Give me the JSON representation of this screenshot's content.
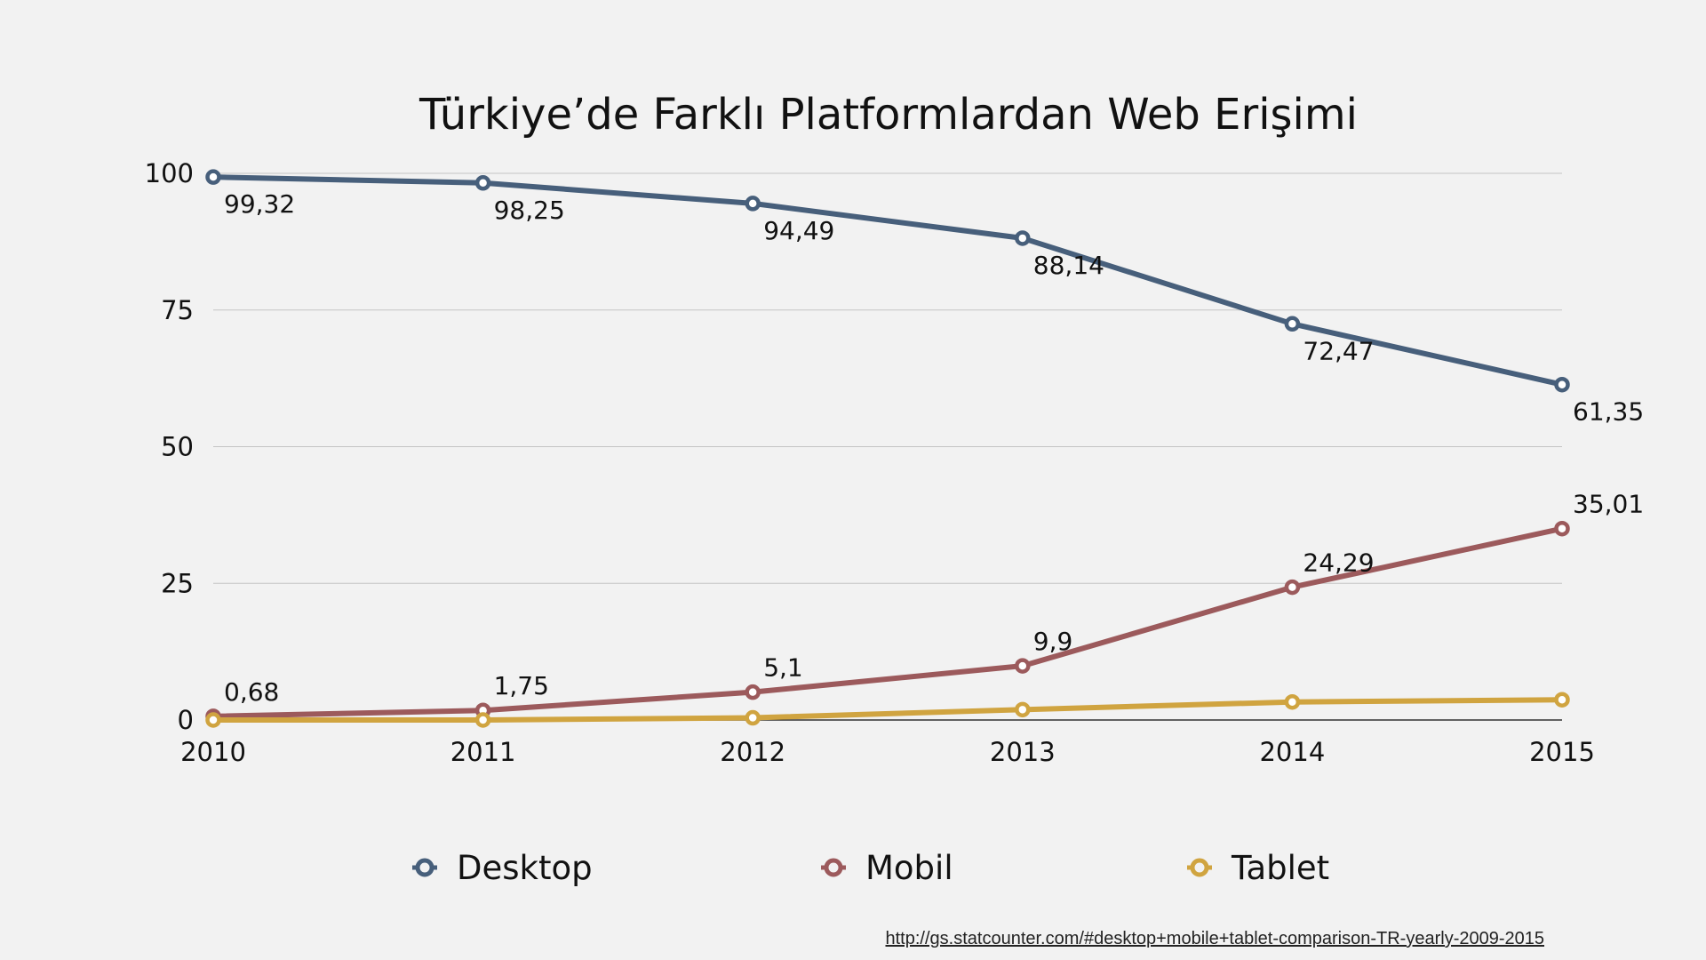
{
  "chart_data": {
    "type": "line",
    "title": "Türkiye’de Farklı Platformlardan Web Erişimi",
    "categories": [
      "2010",
      "2011",
      "2012",
      "2013",
      "2014",
      "2015"
    ],
    "ylim": [
      0,
      100
    ],
    "yticks": [
      0,
      25,
      50,
      75,
      100
    ],
    "grid": true,
    "legend_position": "bottom",
    "series": [
      {
        "name": "Desktop",
        "color": "#475f7b",
        "values": [
          99.32,
          98.25,
          94.49,
          88.14,
          72.47,
          61.35
        ],
        "labels": [
          "99,32",
          "98,25",
          "94,49",
          "88,14",
          "72,47",
          "61,35"
        ],
        "label_position": "below"
      },
      {
        "name": "Mobil",
        "color": "#9c5a5c",
        "values": [
          0.68,
          1.75,
          5.1,
          9.9,
          24.29,
          35.01
        ],
        "labels": [
          "0,68",
          "1,75",
          "5,1",
          "9,9",
          "24,29",
          "35,01"
        ],
        "label_position": "above"
      },
      {
        "name": "Tablet",
        "color": "#d0a440",
        "values": [
          0.0,
          0.0,
          0.4,
          1.9,
          3.3,
          3.7
        ],
        "labels": [],
        "label_position": "none"
      }
    ]
  },
  "source": {
    "link_text": "http://gs.statcounter.com/#desktop+mobile+tablet-comparison-TR-yearly-2009-2015"
  }
}
